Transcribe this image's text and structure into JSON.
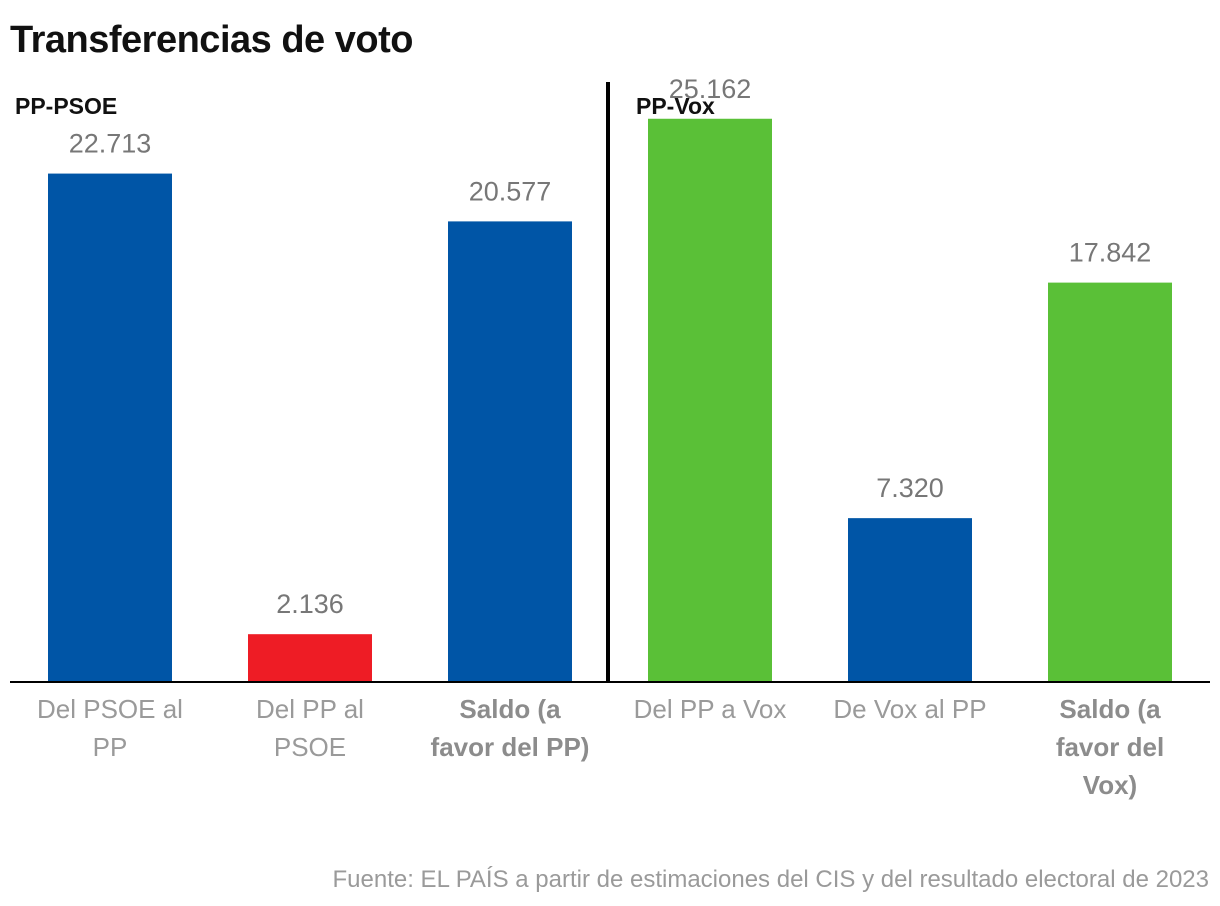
{
  "title": "Transferencias de voto",
  "source": "Fuente: EL PAÍS a partir de estimaciones del CIS y del resultado electoral de 2023",
  "chart_data": [
    {
      "type": "bar",
      "title": "PP-PSOE",
      "categories": [
        [
          "Del PSOE al",
          "PP"
        ],
        [
          "Del PP al",
          "PSOE"
        ],
        [
          "Saldo (a",
          "favor del PP)"
        ]
      ],
      "values": [
        22.713,
        2.136,
        20.577
      ],
      "value_labels": [
        "22.713",
        "2.136",
        "20.577"
      ],
      "bold_categories": [
        false,
        false,
        true
      ],
      "colors": [
        "#0055a6",
        "#ee1c25",
        "#0055a6"
      ],
      "ylim": [
        0,
        26
      ]
    },
    {
      "type": "bar",
      "title": "PP-Vox",
      "categories": [
        [
          "Del PP a Vox"
        ],
        [
          "De Vox al PP"
        ],
        [
          "Saldo (a",
          "favor del",
          "Vox)"
        ]
      ],
      "values": [
        25.162,
        7.32,
        17.842
      ],
      "value_labels": [
        "25.162",
        "7.320",
        "17.842"
      ],
      "bold_categories": [
        false,
        false,
        true
      ],
      "colors": [
        "#5ac037",
        "#0055a6",
        "#5ac037"
      ],
      "ylim": [
        0,
        26
      ]
    }
  ]
}
